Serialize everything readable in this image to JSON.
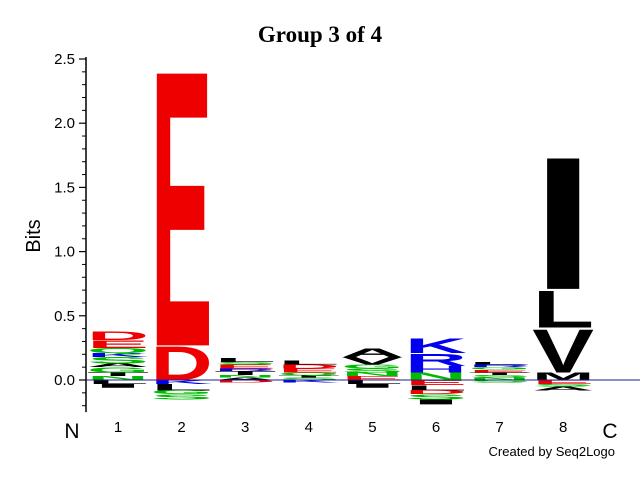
{
  "chart_data": {
    "type": "sequence-logo",
    "title": "Group 3 of 4",
    "ylabel": "Bits",
    "ylim": [
      -0.25,
      2.5
    ],
    "yticks": [
      "0.0",
      "0.5",
      "1.0",
      "1.5",
      "2.0",
      "2.5"
    ],
    "yticks_values": [
      0,
      0.5,
      1.0,
      1.5,
      2.0,
      2.5
    ],
    "xticks": [
      "1",
      "2",
      "3",
      "4",
      "5",
      "6",
      "7",
      "8"
    ],
    "n_label": "N",
    "c_label": "C",
    "credit": "Created by Seq2Logo",
    "colors": {
      "acidic": "#ee0000",
      "basic": "#0000ee",
      "hydrophobic": "#000000",
      "polar": "#00bb00",
      "axis": "#000000",
      "baseline": "#1f1f8f"
    },
    "positions": [
      {
        "position": "1",
        "positive": [
          {
            "letter": "N",
            "color": "#00bb00",
            "height": 0.03
          },
          {
            "letter": "T",
            "color": "#000000",
            "height": 0.03
          },
          {
            "letter": "G",
            "color": "#00bb00",
            "height": 0.04
          },
          {
            "letter": "A",
            "color": "#000000",
            "height": 0.03
          },
          {
            "letter": "S",
            "color": "#00bb00",
            "height": 0.05
          },
          {
            "letter": "K",
            "color": "#0000ee",
            "height": 0.03
          },
          {
            "letter": "Q",
            "color": "#00bb00",
            "height": 0.04
          },
          {
            "letter": "E",
            "color": "#ee0000",
            "height": 0.06
          },
          {
            "letter": "D",
            "color": "#ee0000",
            "height": 0.07
          }
        ],
        "negative": [
          {
            "letter": "L",
            "color": "#000000",
            "height": 0.03
          },
          {
            "letter": "I",
            "color": "#000000",
            "height": 0.03
          }
        ]
      },
      {
        "position": "2",
        "positive": [
          {
            "letter": "D",
            "color": "#ee0000",
            "height": 0.27
          },
          {
            "letter": "E",
            "color": "#ee0000",
            "height": 2.23
          }
        ],
        "negative": [
          {
            "letter": "K",
            "color": "#0000ee",
            "height": 0.03
          },
          {
            "letter": "L",
            "color": "#000000",
            "height": 0.05
          },
          {
            "letter": "G",
            "color": "#00bb00",
            "height": 0.03
          },
          {
            "letter": "S",
            "color": "#00bb00",
            "height": 0.04
          }
        ]
      },
      {
        "position": "3",
        "positive": [
          {
            "letter": "A",
            "color": "#000000",
            "height": 0.02
          },
          {
            "letter": "N",
            "color": "#00bb00",
            "height": 0.02
          },
          {
            "letter": "T",
            "color": "#000000",
            "height": 0.03
          },
          {
            "letter": "R",
            "color": "#0000ee",
            "height": 0.02
          },
          {
            "letter": "E",
            "color": "#ee0000",
            "height": 0.03
          },
          {
            "letter": "S",
            "color": "#00bb00",
            "height": 0.02
          },
          {
            "letter": "L",
            "color": "#000000",
            "height": 0.03
          }
        ],
        "negative": [
          {
            "letter": "D",
            "color": "#ee0000",
            "height": 0.02
          }
        ]
      },
      {
        "position": "4",
        "positive": [
          {
            "letter": "S",
            "color": "#00bb00",
            "height": 0.02
          },
          {
            "letter": "T",
            "color": "#000000",
            "height": 0.02
          },
          {
            "letter": "Q",
            "color": "#00bb00",
            "height": 0.02
          },
          {
            "letter": "E",
            "color": "#ee0000",
            "height": 0.03
          },
          {
            "letter": "D",
            "color": "#ee0000",
            "height": 0.03
          },
          {
            "letter": "L",
            "color": "#000000",
            "height": 0.03
          }
        ],
        "negative": [
          {
            "letter": "K",
            "color": "#0000ee",
            "height": 0.02
          }
        ]
      },
      {
        "position": "5",
        "positive": [
          {
            "letter": "E",
            "color": "#ee0000",
            "height": 0.03
          },
          {
            "letter": "N",
            "color": "#00bb00",
            "height": 0.03
          },
          {
            "letter": "S",
            "color": "#00bb00",
            "height": 0.03
          },
          {
            "letter": "G",
            "color": "#00bb00",
            "height": 0.03
          },
          {
            "letter": "V",
            "color": "#000000",
            "height": 0.06
          },
          {
            "letter": "A",
            "color": "#000000",
            "height": 0.07
          }
        ],
        "negative": [
          {
            "letter": "L",
            "color": "#000000",
            "height": 0.03
          },
          {
            "letter": "I",
            "color": "#000000",
            "height": 0.03
          }
        ]
      },
      {
        "position": "6",
        "positive": [
          {
            "letter": "N",
            "color": "#00bb00",
            "height": 0.06
          },
          {
            "letter": "H",
            "color": "#0000ee",
            "height": 0.05
          },
          {
            "letter": "R",
            "color": "#0000ee",
            "height": 0.1
          },
          {
            "letter": "K",
            "color": "#0000ee",
            "height": 0.12
          }
        ],
        "negative": [
          {
            "letter": "E",
            "color": "#ee0000",
            "height": 0.04
          },
          {
            "letter": "L",
            "color": "#000000",
            "height": 0.04
          },
          {
            "letter": "D",
            "color": "#ee0000",
            "height": 0.03
          },
          {
            "letter": "S",
            "color": "#00bb00",
            "height": 0.04
          },
          {
            "letter": "I",
            "color": "#000000",
            "height": 0.04
          }
        ]
      },
      {
        "position": "7",
        "positive": [
          {
            "letter": "N",
            "color": "#00bb00",
            "height": 0.02
          },
          {
            "letter": "S",
            "color": "#00bb00",
            "height": 0.02
          },
          {
            "letter": "T",
            "color": "#000000",
            "height": 0.02
          },
          {
            "letter": "E",
            "color": "#ee0000",
            "height": 0.02
          },
          {
            "letter": "G",
            "color": "#00bb00",
            "height": 0.02
          },
          {
            "letter": "R",
            "color": "#0000ee",
            "height": 0.02
          },
          {
            "letter": "L",
            "color": "#000000",
            "height": 0.02
          }
        ],
        "negative": [
          {
            "letter": "S",
            "color": "#00bb00",
            "height": 0.02
          }
        ]
      },
      {
        "position": "8",
        "positive": [
          {
            "letter": "M",
            "color": "#000000",
            "height": 0.06
          },
          {
            "letter": "V",
            "color": "#000000",
            "height": 0.35
          },
          {
            "letter": "L",
            "color": "#000000",
            "height": 0.3
          },
          {
            "letter": "I",
            "color": "#000000",
            "height": 1.07
          }
        ],
        "negative": [
          {
            "letter": "E",
            "color": "#ee0000",
            "height": 0.03
          },
          {
            "letter": "S",
            "color": "#00bb00",
            "height": 0.02
          },
          {
            "letter": "A",
            "color": "#000000",
            "height": 0.03
          }
        ]
      }
    ]
  }
}
